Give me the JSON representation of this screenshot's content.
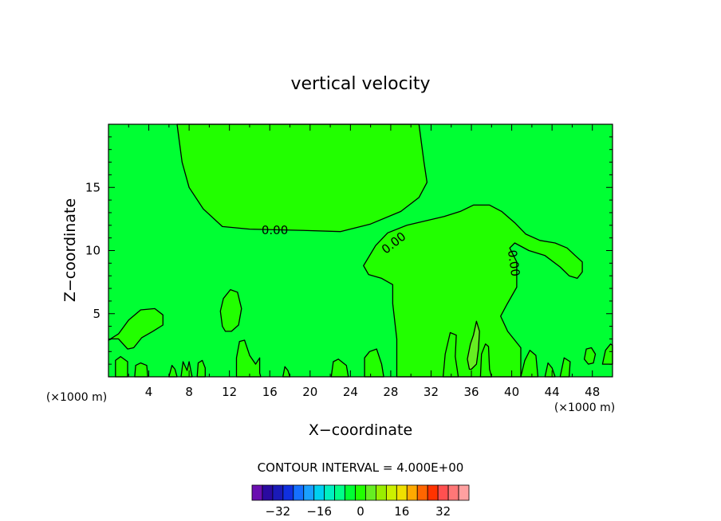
{
  "chart_data": {
    "type": "contour",
    "title": "vertical velocity",
    "xlabel": "X−coordinate",
    "ylabel": "Z−coordinate",
    "x_unit_label_left": "(×1000 m)",
    "x_unit_label_right": "(×1000 m)",
    "xlim": [
      0,
      50
    ],
    "ylim": [
      0,
      20
    ],
    "x_ticks": [
      4,
      8,
      12,
      16,
      20,
      24,
      28,
      32,
      36,
      40,
      44,
      48
    ],
    "y_ticks": [
      5,
      10,
      15
    ],
    "contour_interval_text": "CONTOUR INTERVAL = 4.000E+00",
    "background_color": "#00ff33",
    "fill_color_positive": "#22ff00",
    "fill_color_strong": "#66ee22",
    "contour_labels": [
      {
        "text": "0.00",
        "x": 16.5,
        "y": 11.6,
        "rotate": 0
      },
      {
        "text": "0.00",
        "x": 28.3,
        "y": 10.6,
        "rotate": -38
      },
      {
        "text": "0.00",
        "x": 40.2,
        "y": 9.0,
        "rotate": 82
      }
    ],
    "colorbar": {
      "colors": [
        "#6a0fb0",
        "#2a0aa0",
        "#1a1ab8",
        "#1030e0",
        "#1570ff",
        "#1aa0ff",
        "#00d0f0",
        "#00f0c0",
        "#00ff88",
        "#00ff33",
        "#22ff00",
        "#66ee22",
        "#99ee00",
        "#ccf000",
        "#f0e000",
        "#ffaa00",
        "#ff6600",
        "#ff3300",
        "#ff5050",
        "#ff7777",
        "#ffa0a0"
      ],
      "tick_labels": [
        "−32",
        "−16",
        "0",
        "16",
        "32"
      ],
      "tick_values": [
        -32,
        -16,
        0,
        16,
        32
      ]
    },
    "regions": [
      {
        "name": "upper-left-positive",
        "points": [
          [
            6.8,
            20
          ],
          [
            7.3,
            17
          ],
          [
            8.0,
            15
          ],
          [
            9.4,
            13.3
          ],
          [
            11.3,
            11.9
          ],
          [
            14.0,
            11.7
          ],
          [
            19.0,
            11.6
          ],
          [
            23.0,
            11.5
          ],
          [
            26.0,
            12.1
          ],
          [
            29.0,
            13.1
          ],
          [
            30.8,
            14.2
          ],
          [
            31.6,
            15.4
          ],
          [
            31.3,
            17.0
          ],
          [
            30.8,
            20
          ]
        ]
      },
      {
        "name": "central-positive",
        "points": [
          [
            28.6,
            0
          ],
          [
            28.6,
            3.0
          ],
          [
            28.2,
            5.8
          ],
          [
            28.2,
            7.3
          ],
          [
            27.1,
            7.8
          ],
          [
            25.8,
            8.1
          ],
          [
            25.3,
            8.8
          ],
          [
            26.5,
            10.4
          ],
          [
            27.7,
            11.4
          ],
          [
            29.6,
            12.0
          ],
          [
            31.7,
            12.4
          ],
          [
            33.3,
            12.7
          ],
          [
            34.9,
            13.1
          ],
          [
            36.2,
            13.6
          ],
          [
            37.8,
            13.6
          ],
          [
            39.0,
            13.1
          ],
          [
            40.3,
            12.2
          ],
          [
            41.4,
            11.3
          ],
          [
            42.8,
            10.8
          ],
          [
            44.3,
            10.6
          ],
          [
            45.5,
            10.2
          ],
          [
            46.3,
            9.6
          ],
          [
            47.0,
            9.1
          ],
          [
            47.0,
            8.3
          ],
          [
            46.5,
            7.8
          ],
          [
            45.7,
            8.0
          ],
          [
            44.8,
            8.7
          ],
          [
            43.3,
            9.6
          ],
          [
            41.7,
            10.0
          ],
          [
            40.3,
            10.6
          ],
          [
            39.8,
            10.2
          ],
          [
            40.5,
            9.1
          ],
          [
            40.5,
            7.1
          ],
          [
            39.5,
            5.7
          ],
          [
            38.9,
            4.8
          ],
          [
            39.6,
            3.6
          ],
          [
            40.9,
            2.3
          ],
          [
            40.9,
            0
          ]
        ]
      },
      {
        "name": "yellow-green-strong",
        "points": [
          [
            35.8,
            0.6
          ],
          [
            35.6,
            1.4
          ],
          [
            35.9,
            2.6
          ],
          [
            36.2,
            3.3
          ],
          [
            36.5,
            4.4
          ],
          [
            36.8,
            3.6
          ],
          [
            36.7,
            2.2
          ],
          [
            36.5,
            1.0
          ],
          [
            36.0,
            0.6
          ]
        ]
      },
      {
        "name": "lower-left-lobe",
        "points": [
          [
            0,
            2.9
          ],
          [
            1.0,
            3.4
          ],
          [
            2.0,
            4.5
          ],
          [
            3.2,
            5.3
          ],
          [
            4.6,
            5.4
          ],
          [
            5.4,
            4.9
          ],
          [
            5.4,
            4.1
          ],
          [
            4.4,
            3.6
          ],
          [
            3.3,
            3.1
          ],
          [
            2.5,
            2.3
          ],
          [
            1.9,
            2.2
          ],
          [
            1.0,
            3.0
          ],
          [
            0.3,
            3.0
          ]
        ]
      },
      {
        "name": "small-cell-13",
        "points": [
          [
            11.3,
            4.0
          ],
          [
            11.1,
            5.2
          ],
          [
            11.4,
            6.2
          ],
          [
            12.1,
            6.9
          ],
          [
            12.8,
            6.7
          ],
          [
            13.2,
            5.4
          ],
          [
            12.9,
            4.1
          ],
          [
            12.2,
            3.6
          ],
          [
            11.6,
            3.6
          ]
        ]
      },
      {
        "name": "cell-0.8",
        "points": [
          [
            0.7,
            0
          ],
          [
            0.7,
            1.3
          ],
          [
            1.2,
            1.6
          ],
          [
            1.9,
            1.2
          ],
          [
            1.9,
            0
          ]
        ]
      },
      {
        "name": "cell-3.1",
        "points": [
          [
            2.6,
            0
          ],
          [
            2.7,
            0.9
          ],
          [
            3.2,
            1.1
          ],
          [
            3.8,
            0.9
          ],
          [
            3.9,
            0
          ]
        ]
      },
      {
        "name": "cell-6.3",
        "points": [
          [
            6.0,
            0
          ],
          [
            6.3,
            0.9
          ],
          [
            6.6,
            0.6
          ],
          [
            6.8,
            0
          ]
        ]
      },
      {
        "name": "cell-7.5",
        "points": [
          [
            7.2,
            0
          ],
          [
            7.4,
            1.2
          ],
          [
            7.8,
            0.5
          ],
          [
            8.0,
            1.2
          ],
          [
            8.3,
            0
          ]
        ]
      },
      {
        "name": "cell-9.1",
        "points": [
          [
            8.8,
            0
          ],
          [
            8.9,
            1.1
          ],
          [
            9.3,
            1.3
          ],
          [
            9.6,
            0.7
          ],
          [
            9.6,
            0
          ]
        ]
      },
      {
        "name": "cell-13.3",
        "points": [
          [
            12.7,
            0
          ],
          [
            12.7,
            1.5
          ],
          [
            13.0,
            2.8
          ],
          [
            13.5,
            2.9
          ],
          [
            14.0,
            1.7
          ],
          [
            14.6,
            1.0
          ],
          [
            15.0,
            1.5
          ],
          [
            15.0,
            0.3
          ],
          [
            15.1,
            0
          ]
        ]
      },
      {
        "name": "cell-17.6",
        "points": [
          [
            17.3,
            0
          ],
          [
            17.5,
            0.8
          ],
          [
            17.8,
            0.5
          ],
          [
            18.0,
            0
          ]
        ]
      },
      {
        "name": "cell-22.9",
        "points": [
          [
            22.1,
            0
          ],
          [
            22.3,
            1.2
          ],
          [
            22.8,
            1.4
          ],
          [
            23.6,
            0.9
          ],
          [
            23.8,
            0
          ]
        ]
      },
      {
        "name": "cell-26.1",
        "points": [
          [
            25.4,
            0
          ],
          [
            25.4,
            1.5
          ],
          [
            25.9,
            2.0
          ],
          [
            26.6,
            2.2
          ],
          [
            27.1,
            1.0
          ],
          [
            27.3,
            0
          ]
        ]
      },
      {
        "name": "cell-34.0",
        "points": [
          [
            33.2,
            0
          ],
          [
            33.4,
            1.8
          ],
          [
            33.9,
            3.5
          ],
          [
            34.5,
            3.3
          ],
          [
            34.4,
            1.6
          ],
          [
            34.7,
            0
          ]
        ]
      },
      {
        "name": "cell-37.3",
        "points": [
          [
            36.9,
            0
          ],
          [
            37.0,
            1.8
          ],
          [
            37.4,
            2.6
          ],
          [
            37.7,
            2.4
          ],
          [
            37.8,
            0.6
          ],
          [
            38.0,
            0
          ]
        ]
      },
      {
        "name": "cell-41.7",
        "points": [
          [
            40.9,
            0
          ],
          [
            41.3,
            1.3
          ],
          [
            41.8,
            2.1
          ],
          [
            42.4,
            1.7
          ],
          [
            42.6,
            0
          ]
        ]
      },
      {
        "name": "cell-43.8",
        "points": [
          [
            43.3,
            0
          ],
          [
            43.6,
            1.1
          ],
          [
            44.0,
            0.7
          ],
          [
            44.3,
            0
          ]
        ]
      },
      {
        "name": "cell-45.3",
        "points": [
          [
            44.8,
            0
          ],
          [
            45.2,
            1.5
          ],
          [
            45.8,
            1.2
          ],
          [
            45.7,
            0
          ]
        ]
      },
      {
        "name": "cell-47.7",
        "points": [
          [
            47.2,
            1.4
          ],
          [
            47.4,
            2.2
          ],
          [
            47.9,
            2.3
          ],
          [
            48.3,
            1.8
          ],
          [
            48.1,
            1.1
          ],
          [
            47.6,
            1.0
          ]
        ]
      },
      {
        "name": "cell-49.7",
        "points": [
          [
            49.0,
            1.0
          ],
          [
            49.3,
            2.1
          ],
          [
            49.8,
            2.6
          ],
          [
            50,
            2.5
          ],
          [
            50,
            1.0
          ]
        ]
      }
    ]
  }
}
